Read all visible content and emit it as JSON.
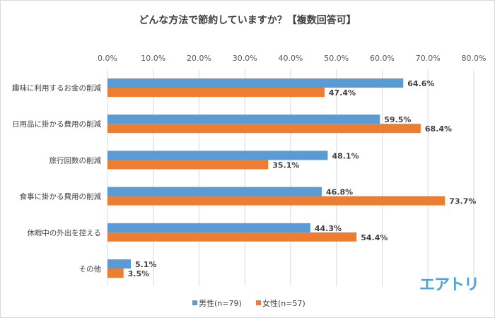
{
  "chart_data": {
    "type": "bar",
    "orientation": "horizontal",
    "title": "どんな方法で節約していますか？【複数回答可】",
    "categories": [
      "趣味に利用するお金の削減",
      "日用品に掛かる費用の削減",
      "旅行回数の削減",
      "食事に掛かる費用の削減",
      "休暇中の外出を控える",
      "その他"
    ],
    "series": [
      {
        "name": "男性(n=79)",
        "values": [
          64.6,
          59.5,
          48.1,
          46.8,
          44.3,
          5.1
        ],
        "color": "#5b9bd5"
      },
      {
        "name": "女性(n=57)",
        "values": [
          47.4,
          68.4,
          35.1,
          73.7,
          54.4,
          3.5
        ],
        "color": "#ed7d31"
      }
    ],
    "xlim": [
      0,
      80
    ],
    "xticks": [
      "0.0%",
      "10.0%",
      "20.0%",
      "30.0%",
      "40.0%",
      "50.0%",
      "60.0%",
      "70.0%",
      "80.0%"
    ],
    "value_format": "percent_1dp",
    "grid": true,
    "axis_position": "top",
    "legend": "bottom"
  },
  "logo_text": "エアトリ"
}
